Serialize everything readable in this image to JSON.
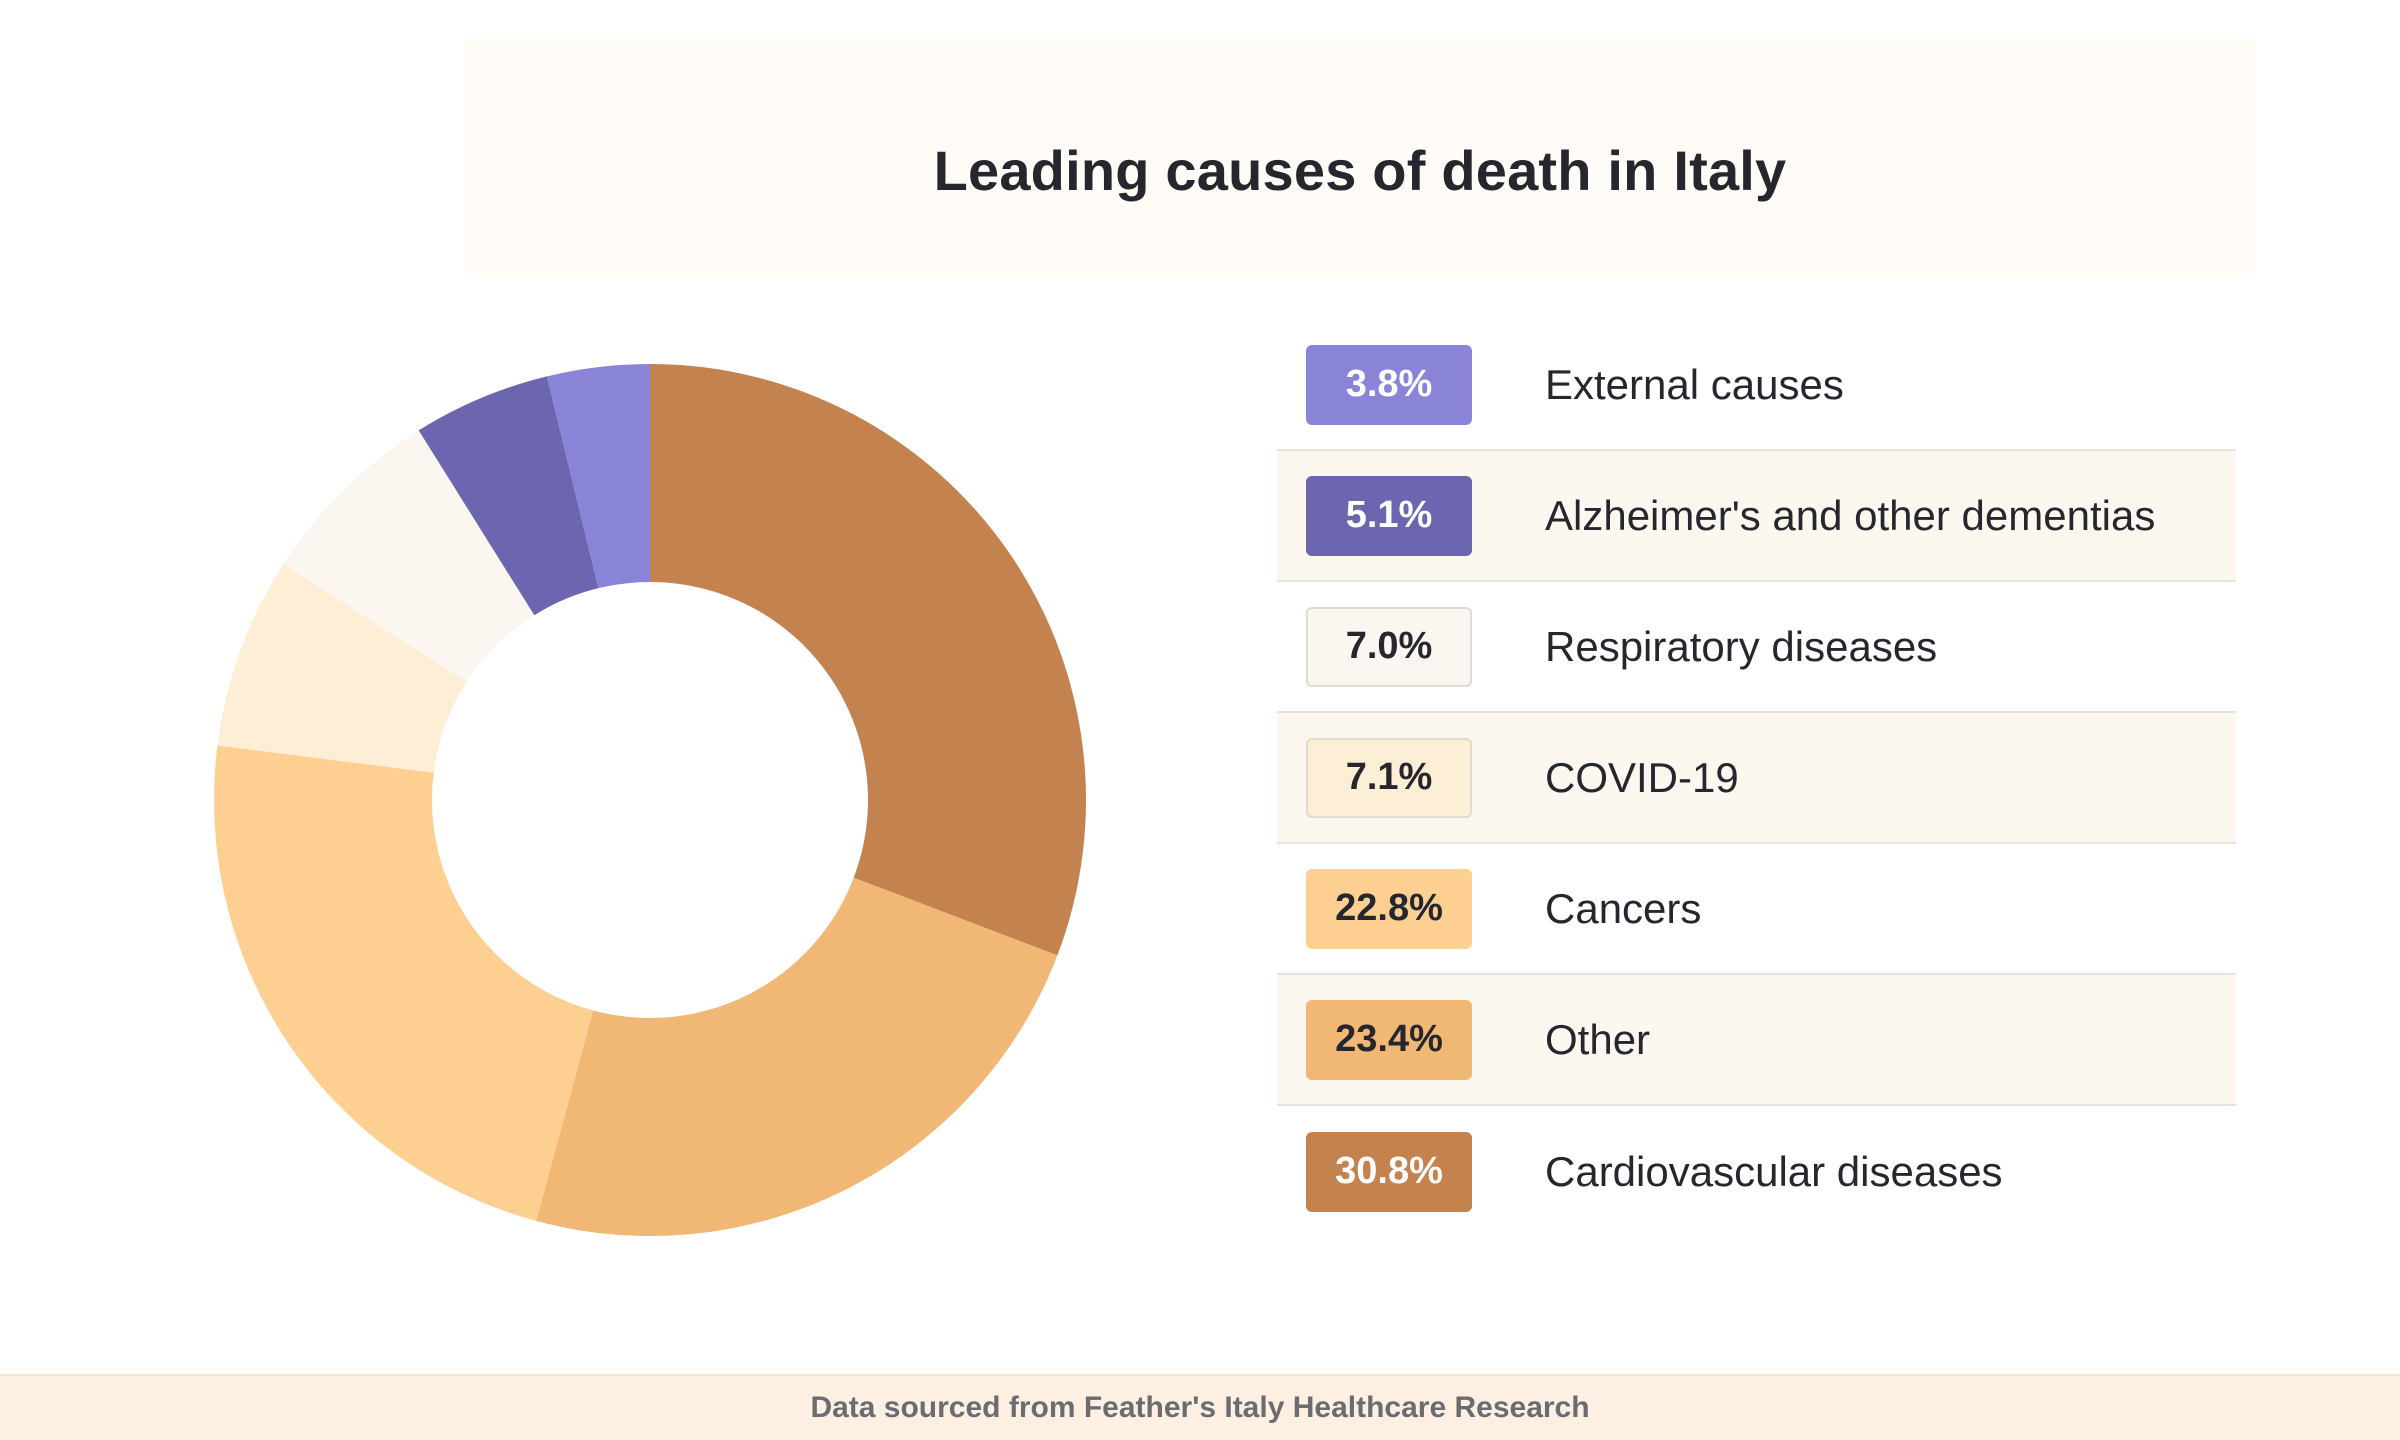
{
  "chart_data": {
    "type": "pie",
    "title": "Leading causes of death in Italy",
    "unit": "%",
    "slices": [
      {
        "label": "Cardiovascular diseases",
        "value": 30.8,
        "display": "30.8%",
        "color": "#c4824e",
        "text_color": "#ffffff"
      },
      {
        "label": "Other",
        "value": 23.4,
        "display": "23.4%",
        "color": "#f0b874",
        "text_color": "#26262e"
      },
      {
        "label": "Cancers",
        "value": 22.8,
        "display": "22.8%",
        "color": "#fdd091",
        "text_color": "#26262e"
      },
      {
        "label": "COVID-19",
        "value": 7.1,
        "display": "7.1%",
        "color": "#fdeed6",
        "text_color": "#26262e"
      },
      {
        "label": "Respiratory diseases",
        "value": 7.0,
        "display": "7.0%",
        "color": "#fbf7f0",
        "text_color": "#26262e"
      },
      {
        "label": "Alzheimer's and other dementias",
        "value": 5.1,
        "display": "5.1%",
        "color": "#6c65b0",
        "text_color": "#ffffff"
      },
      {
        "label": "External causes",
        "value": 3.8,
        "display": "3.8%",
        "color": "#8a84d9",
        "text_color": "#ffffff"
      }
    ],
    "legend_order": [
      "External causes",
      "Alzheimer's and other dementias",
      "Respiratory diseases",
      "COVID-19",
      "Cancers",
      "Other",
      "Cardiovascular diseases"
    ],
    "legend_placement": "right"
  },
  "footer": {
    "text": "Data sourced from Feather's Italy Healthcare Research"
  }
}
